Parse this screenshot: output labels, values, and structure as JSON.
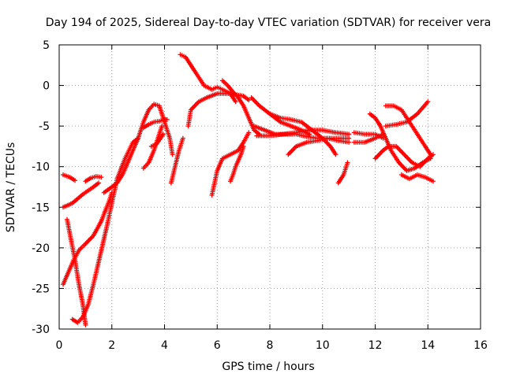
{
  "chart_data": {
    "type": "scatter",
    "title": "Day 194 of 2025, Sidereal Day-to-day VTEC variation (SDTVAR) for receiver vera",
    "xlabel": "GPS time / hours",
    "ylabel": "SDTVAR / TECUs",
    "xlim": [
      0,
      16
    ],
    "ylim": [
      -30,
      5
    ],
    "xticks": [
      0,
      2,
      4,
      6,
      8,
      10,
      12,
      14,
      16
    ],
    "yticks": [
      -30,
      -25,
      -20,
      -15,
      -10,
      -5,
      0,
      5
    ],
    "grid": true,
    "marker": "+",
    "color": "#ff0000",
    "series": [
      {
        "values": [
          [
            0.15,
            -15.0
          ],
          [
            0.5,
            -14.5
          ],
          [
            0.9,
            -13.4
          ],
          [
            1.3,
            -12.5
          ],
          [
            1.5,
            -12.0
          ]
        ]
      },
      {
        "values": [
          [
            0.15,
            -24.5
          ],
          [
            0.35,
            -23.0
          ],
          [
            0.55,
            -21.5
          ],
          [
            0.75,
            -20.3
          ],
          [
            1.0,
            -19.5
          ],
          [
            1.3,
            -18.5
          ],
          [
            1.6,
            -16.7
          ],
          [
            1.9,
            -14.2
          ],
          [
            2.0,
            -13.2
          ]
        ]
      },
      {
        "values": [
          [
            0.15,
            -11.0
          ],
          [
            0.4,
            -11.3
          ],
          [
            0.6,
            -11.7
          ]
        ]
      },
      {
        "values": [
          [
            1.0,
            -11.8
          ],
          [
            1.2,
            -11.4
          ],
          [
            1.4,
            -11.2
          ],
          [
            1.6,
            -11.3
          ]
        ]
      },
      {
        "values": [
          [
            0.3,
            -16.5
          ],
          [
            0.45,
            -19.0
          ],
          [
            0.6,
            -21.5
          ],
          [
            0.75,
            -24.5
          ],
          [
            0.9,
            -27.0
          ],
          [
            1.0,
            -29.5
          ]
        ]
      },
      {
        "values": [
          [
            0.5,
            -28.8
          ],
          [
            0.7,
            -29.2
          ],
          [
            0.9,
            -28.5
          ],
          [
            1.1,
            -27.0
          ],
          [
            1.3,
            -24.5
          ],
          [
            1.55,
            -21.0
          ],
          [
            1.8,
            -17.5
          ],
          [
            2.0,
            -14.5
          ],
          [
            2.2,
            -11.5
          ],
          [
            2.5,
            -9.0
          ],
          [
            2.8,
            -7.0
          ],
          [
            3.0,
            -6.5
          ]
        ]
      },
      {
        "values": [
          [
            1.7,
            -13.2
          ],
          [
            2.0,
            -12.5
          ],
          [
            2.2,
            -12.0
          ],
          [
            2.4,
            -11.0
          ],
          [
            2.6,
            -9.5
          ],
          [
            2.8,
            -8.0
          ],
          [
            3.0,
            -6.5
          ],
          [
            3.2,
            -4.5
          ],
          [
            3.4,
            -3.0
          ],
          [
            3.6,
            -2.3
          ],
          [
            3.8,
            -2.5
          ],
          [
            4.0,
            -4.5
          ],
          [
            4.2,
            -6.5
          ],
          [
            4.3,
            -8.5
          ]
        ]
      },
      {
        "values": [
          [
            3.2,
            -10.2
          ],
          [
            3.4,
            -9.5
          ],
          [
            3.6,
            -8.0
          ],
          [
            3.8,
            -6.0
          ],
          [
            3.9,
            -5.0
          ]
        ]
      },
      {
        "values": [
          [
            3.2,
            -5.2
          ],
          [
            3.4,
            -4.8
          ],
          [
            3.6,
            -4.5
          ],
          [
            3.8,
            -4.4
          ],
          [
            4.0,
            -4.2
          ],
          [
            4.1,
            -4.2
          ]
        ]
      },
      {
        "values": [
          [
            3.5,
            -7.5
          ],
          [
            3.7,
            -7.2
          ],
          [
            3.85,
            -6.5
          ],
          [
            3.95,
            -6.0
          ]
        ]
      },
      {
        "values": [
          [
            4.25,
            -12.0
          ],
          [
            4.4,
            -10.0
          ],
          [
            4.55,
            -8.0
          ],
          [
            4.7,
            -6.5
          ]
        ]
      },
      {
        "values": [
          [
            4.6,
            3.8
          ],
          [
            4.8,
            3.5
          ],
          [
            5.0,
            2.5
          ],
          [
            5.2,
            1.5
          ],
          [
            5.5,
            0.0
          ],
          [
            5.8,
            -0.5
          ],
          [
            6.0,
            -0.2
          ],
          [
            6.2,
            -0.5
          ],
          [
            6.5,
            -1.0
          ],
          [
            6.7,
            -2.0
          ]
        ]
      },
      {
        "values": [
          [
            4.9,
            -5.0
          ],
          [
            5.0,
            -3.0
          ],
          [
            5.3,
            -2.0
          ],
          [
            5.6,
            -1.5
          ],
          [
            6.0,
            -1.0
          ],
          [
            6.5,
            -1.0
          ],
          [
            7.0,
            -1.3
          ],
          [
            7.2,
            -1.8
          ]
        ]
      },
      {
        "values": [
          [
            6.2,
            0.6
          ],
          [
            6.4,
            0.0
          ],
          [
            6.6,
            -0.8
          ],
          [
            6.8,
            -1.5
          ],
          [
            7.0,
            -2.5
          ],
          [
            7.2,
            -4.0
          ],
          [
            7.4,
            -5.5
          ],
          [
            7.6,
            -6.0
          ]
        ]
      },
      {
        "values": [
          [
            5.8,
            -13.5
          ],
          [
            6.0,
            -10.5
          ],
          [
            6.2,
            -9.0
          ],
          [
            6.5,
            -8.5
          ],
          [
            6.8,
            -8.0
          ],
          [
            7.0,
            -7.0
          ],
          [
            7.2,
            -5.8
          ]
        ]
      },
      {
        "values": [
          [
            6.5,
            -11.8
          ],
          [
            6.6,
            -11.0
          ],
          [
            6.7,
            -10.0
          ],
          [
            6.9,
            -8.5
          ],
          [
            7.0,
            -7.5
          ]
        ]
      },
      {
        "values": [
          [
            7.3,
            -1.5
          ],
          [
            7.6,
            -2.5
          ],
          [
            8.0,
            -3.5
          ],
          [
            8.4,
            -4.5
          ],
          [
            8.8,
            -5.0
          ],
          [
            9.2,
            -5.5
          ],
          [
            9.5,
            -6.0
          ]
        ]
      },
      {
        "values": [
          [
            7.4,
            -5.0
          ],
          [
            7.8,
            -5.5
          ],
          [
            8.2,
            -6.0
          ],
          [
            8.6,
            -6.0
          ],
          [
            9.0,
            -6.0
          ],
          [
            9.4,
            -6.3
          ],
          [
            9.8,
            -6.5
          ],
          [
            10.2,
            -6.5
          ],
          [
            10.6,
            -6.8
          ],
          [
            11.0,
            -7.0
          ]
        ]
      },
      {
        "values": [
          [
            8.0,
            -3.5
          ],
          [
            8.4,
            -4.0
          ],
          [
            8.8,
            -4.2
          ],
          [
            9.2,
            -4.5
          ],
          [
            9.6,
            -5.5
          ],
          [
            10.0,
            -6.5
          ],
          [
            10.3,
            -7.5
          ],
          [
            10.5,
            -8.5
          ]
        ]
      },
      {
        "values": [
          [
            7.5,
            -6.2
          ],
          [
            8.0,
            -6.2
          ],
          [
            8.5,
            -6.0
          ],
          [
            9.0,
            -5.8
          ],
          [
            9.5,
            -5.5
          ],
          [
            10.0,
            -5.5
          ],
          [
            10.5,
            -5.8
          ],
          [
            11.0,
            -6.0
          ]
        ]
      },
      {
        "values": [
          [
            8.7,
            -8.5
          ],
          [
            9.0,
            -7.5
          ],
          [
            9.4,
            -7.0
          ],
          [
            9.8,
            -6.8
          ],
          [
            10.2,
            -6.5
          ],
          [
            10.6,
            -6.5
          ],
          [
            11.0,
            -6.5
          ]
        ]
      },
      {
        "values": [
          [
            10.6,
            -12.0
          ],
          [
            10.8,
            -11.0
          ],
          [
            10.95,
            -9.5
          ]
        ]
      },
      {
        "values": [
          [
            11.2,
            -5.8
          ],
          [
            11.6,
            -6.0
          ],
          [
            12.0,
            -6.0
          ],
          [
            12.3,
            -6.5
          ]
        ]
      },
      {
        "values": [
          [
            11.2,
            -7.0
          ],
          [
            11.6,
            -7.0
          ],
          [
            12.0,
            -6.5
          ],
          [
            12.3,
            -6.0
          ]
        ]
      },
      {
        "values": [
          [
            11.8,
            -3.5
          ],
          [
            12.0,
            -4.0
          ],
          [
            12.2,
            -5.0
          ],
          [
            12.4,
            -6.5
          ],
          [
            12.6,
            -8.0
          ],
          [
            12.9,
            -9.5
          ],
          [
            13.2,
            -10.5
          ],
          [
            13.5,
            -10.2
          ],
          [
            13.8,
            -9.5
          ],
          [
            14.1,
            -9.0
          ]
        ]
      },
      {
        "values": [
          [
            12.0,
            -9.0
          ],
          [
            12.3,
            -8.0
          ],
          [
            12.5,
            -7.5
          ],
          [
            12.8,
            -7.5
          ],
          [
            13.1,
            -8.5
          ],
          [
            13.4,
            -9.5
          ],
          [
            13.7,
            -10.0
          ],
          [
            14.0,
            -9.0
          ],
          [
            14.2,
            -8.5
          ]
        ]
      },
      {
        "values": [
          [
            12.4,
            -5.0
          ],
          [
            12.8,
            -4.8
          ],
          [
            13.2,
            -4.5
          ],
          [
            13.6,
            -3.5
          ],
          [
            14.0,
            -2.0
          ]
        ]
      },
      {
        "values": [
          [
            12.4,
            -2.5
          ],
          [
            12.7,
            -2.5
          ],
          [
            13.0,
            -3.0
          ],
          [
            13.3,
            -4.5
          ],
          [
            13.6,
            -6.0
          ],
          [
            13.9,
            -7.5
          ],
          [
            14.1,
            -8.5
          ]
        ]
      },
      {
        "values": [
          [
            13.0,
            -11.0
          ],
          [
            13.3,
            -11.5
          ],
          [
            13.6,
            -11.0
          ],
          [
            13.9,
            -11.3
          ],
          [
            14.2,
            -11.8
          ]
        ]
      }
    ]
  }
}
